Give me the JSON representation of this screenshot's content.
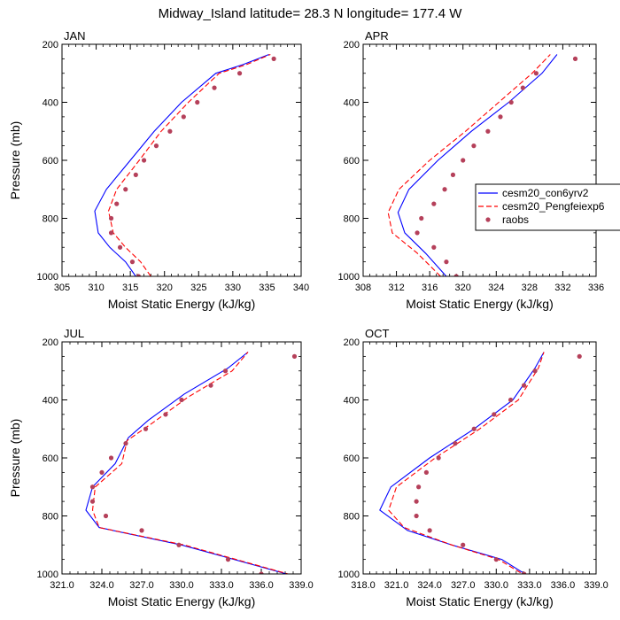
{
  "title": "Midway_Island  latitude= 28.3 N longitude= 177.4 W",
  "colors": {
    "model1": "#0000ff",
    "model2": "#ff0000",
    "obs": "#b5405a"
  },
  "legend": {
    "placement": "right-middle",
    "entries": [
      "cesm20_con6yrv2",
      "cesm20_Pengfeiexp6",
      "raobs"
    ]
  },
  "chart_data": [
    {
      "type": "line",
      "panel_title": "JAN",
      "xlabel": "Moist Static Energy (kJ/kg)",
      "ylabel": "Pressure (mb)",
      "xlim": [
        305,
        340
      ],
      "ylim": [
        1000,
        200
      ],
      "xticks": [
        "305",
        "310",
        "315",
        "320",
        "325",
        "330",
        "335",
        "340"
      ],
      "xtick_values": [
        305,
        310,
        315,
        320,
        325,
        330,
        335,
        340
      ],
      "yticks": [
        "200",
        "400",
        "600",
        "800",
        "1000"
      ],
      "ytick_values": [
        200,
        400,
        600,
        800,
        1000
      ],
      "series": [
        {
          "name": "cesm20_con6yrv2",
          "style": "solid",
          "x": [
            315.8,
            314.3,
            312,
            310.3,
            309.8,
            311.5,
            315,
            318.5,
            322.5,
            327.5,
            331.5,
            335.3
          ],
          "p": [
            1000,
            950,
            900,
            850,
            775,
            700,
            600,
            500,
            400,
            300,
            270,
            235
          ]
        },
        {
          "name": "cesm20_Pengfeiexp6",
          "style": "dashed",
          "x": [
            318,
            316.5,
            314.3,
            312.5,
            311.8,
            313,
            316.3,
            319.5,
            323.5,
            328,
            332,
            335.5
          ],
          "p": [
            1000,
            950,
            900,
            850,
            775,
            700,
            600,
            500,
            400,
            300,
            270,
            235
          ]
        },
        {
          "name": "raobs",
          "style": "markers",
          "x": [
            316.2,
            315.3,
            313.5,
            312.2,
            312.2,
            313,
            314.3,
            315.8,
            317,
            318.8,
            320.8,
            322.8,
            324.8,
            327.3,
            331,
            336
          ],
          "p": [
            1000,
            950,
            900,
            850,
            800,
            750,
            700,
            650,
            600,
            550,
            500,
            450,
            400,
            350,
            300,
            250
          ]
        }
      ]
    },
    {
      "type": "line",
      "panel_title": "APR",
      "xlabel": "Moist Static Energy (kJ/kg)",
      "ylabel": "",
      "xlim": [
        308,
        336
      ],
      "ylim": [
        1000,
        200
      ],
      "xticks": [
        "308",
        "312",
        "316",
        "320",
        "324",
        "328",
        "332",
        "336"
      ],
      "xtick_values": [
        308,
        312,
        316,
        320,
        324,
        328,
        332,
        336
      ],
      "yticks": [
        "200",
        "400",
        "600",
        "800",
        "1000"
      ],
      "ytick_values": [
        200,
        400,
        600,
        800,
        1000
      ],
      "series": [
        {
          "name": "cesm20_con6yrv2",
          "style": "solid",
          "x": [
            318,
            315.5,
            313,
            312.2,
            313.5,
            317,
            321,
            325.5,
            329.5,
            331.3
          ],
          "p": [
            1000,
            920,
            850,
            780,
            700,
            600,
            500,
            400,
            300,
            235
          ]
        },
        {
          "name": "cesm20_Pengfeiexp6",
          "style": "dashed",
          "x": [
            317.3,
            314.5,
            311.5,
            311,
            312.3,
            316,
            320.3,
            324.3,
            328.3,
            330.5
          ],
          "p": [
            1000,
            920,
            850,
            780,
            700,
            600,
            500,
            400,
            300,
            235
          ]
        },
        {
          "name": "raobs",
          "style": "markers",
          "x": [
            319.2,
            318,
            316.5,
            314.5,
            315,
            316.5,
            317.8,
            318.8,
            320,
            321.3,
            323,
            324.5,
            325.8,
            327.2,
            328.8,
            333.5
          ],
          "p": [
            1000,
            950,
            900,
            850,
            800,
            750,
            700,
            650,
            600,
            550,
            500,
            450,
            400,
            350,
            300,
            250
          ]
        }
      ]
    },
    {
      "type": "line",
      "panel_title": "JUL",
      "xlabel": "Moist Static Energy (kJ/kg)",
      "ylabel": "Pressure (mb)",
      "xlim": [
        321,
        339
      ],
      "ylim": [
        1000,
        200
      ],
      "xticks": [
        "321.0",
        "324.0",
        "327.0",
        "330.0",
        "333.0",
        "336.0",
        "339.0"
      ],
      "xtick_values": [
        321,
        324,
        327,
        330,
        333,
        336,
        339
      ],
      "yticks": [
        "200",
        "400",
        "600",
        "800",
        "1000"
      ],
      "ytick_values": [
        200,
        400,
        600,
        800,
        1000
      ],
      "series": [
        {
          "name": "cesm20_con6yrv2",
          "style": "solid",
          "x": [
            338.7,
            330,
            323.8,
            322.8,
            323.3,
            325,
            326,
            327.5,
            330.2,
            333.5,
            335
          ],
          "p": [
            1010,
            900,
            840,
            780,
            700,
            620,
            530,
            470,
            380,
            290,
            235
          ]
        },
        {
          "name": "cesm20_Pengfeiexp6",
          "style": "dashed",
          "x": [
            338.8,
            330.2,
            323.8,
            323.3,
            323.5,
            325.5,
            325.9,
            327.8,
            330.5,
            333.8,
            335
          ],
          "p": [
            1010,
            900,
            840,
            780,
            700,
            620,
            540,
            480,
            390,
            300,
            235
          ]
        },
        {
          "name": "raobs",
          "style": "markers",
          "x": [
            336,
            333.5,
            329.8,
            327,
            324.3,
            323.3,
            323.3,
            324,
            324.7,
            325.8,
            327.3,
            328.8,
            330,
            332.2,
            333.3,
            338.5
          ],
          "p": [
            1000,
            950,
            900,
            850,
            800,
            750,
            700,
            650,
            600,
            550,
            500,
            450,
            400,
            350,
            300,
            250
          ]
        }
      ]
    },
    {
      "type": "line",
      "panel_title": "OCT",
      "xlabel": "Moist Static Energy (kJ/kg)",
      "ylabel": "",
      "xlim": [
        318,
        339
      ],
      "ylim": [
        1000,
        200
      ],
      "xticks": [
        "318.0",
        "321.0",
        "324.0",
        "327.0",
        "330.0",
        "333.0",
        "336.0",
        "339.0"
      ],
      "xtick_values": [
        318,
        321,
        324,
        327,
        330,
        333,
        336,
        339
      ],
      "yticks": [
        "200",
        "400",
        "600",
        "800",
        "1000"
      ],
      "ytick_values": [
        200,
        400,
        600,
        800,
        1000
      ],
      "series": [
        {
          "name": "cesm20_con6yrv2",
          "style": "solid",
          "x": [
            333,
            330.5,
            326,
            322,
            319.5,
            320.5,
            324,
            328,
            331.5,
            333.5,
            334.3
          ],
          "p": [
            1010,
            950,
            900,
            850,
            780,
            700,
            600,
            500,
            400,
            290,
            235
          ]
        },
        {
          "name": "cesm20_Pengfeiexp6",
          "style": "dashed",
          "x": [
            332.8,
            330.2,
            326,
            321.7,
            320.3,
            321,
            324.5,
            328.5,
            332,
            333.8,
            334.3
          ],
          "p": [
            1010,
            950,
            900,
            840,
            780,
            700,
            600,
            500,
            400,
            290,
            235
          ]
        },
        {
          "name": "raobs",
          "style": "markers",
          "x": [
            332.5,
            330,
            327,
            324,
            322.8,
            322.8,
            323,
            323.7,
            324.8,
            326.3,
            328,
            329.8,
            331.3,
            332.5,
            333.5,
            337.5
          ],
          "p": [
            1000,
            950,
            900,
            850,
            800,
            750,
            700,
            650,
            600,
            550,
            500,
            450,
            400,
            350,
            300,
            250
          ]
        }
      ]
    }
  ]
}
